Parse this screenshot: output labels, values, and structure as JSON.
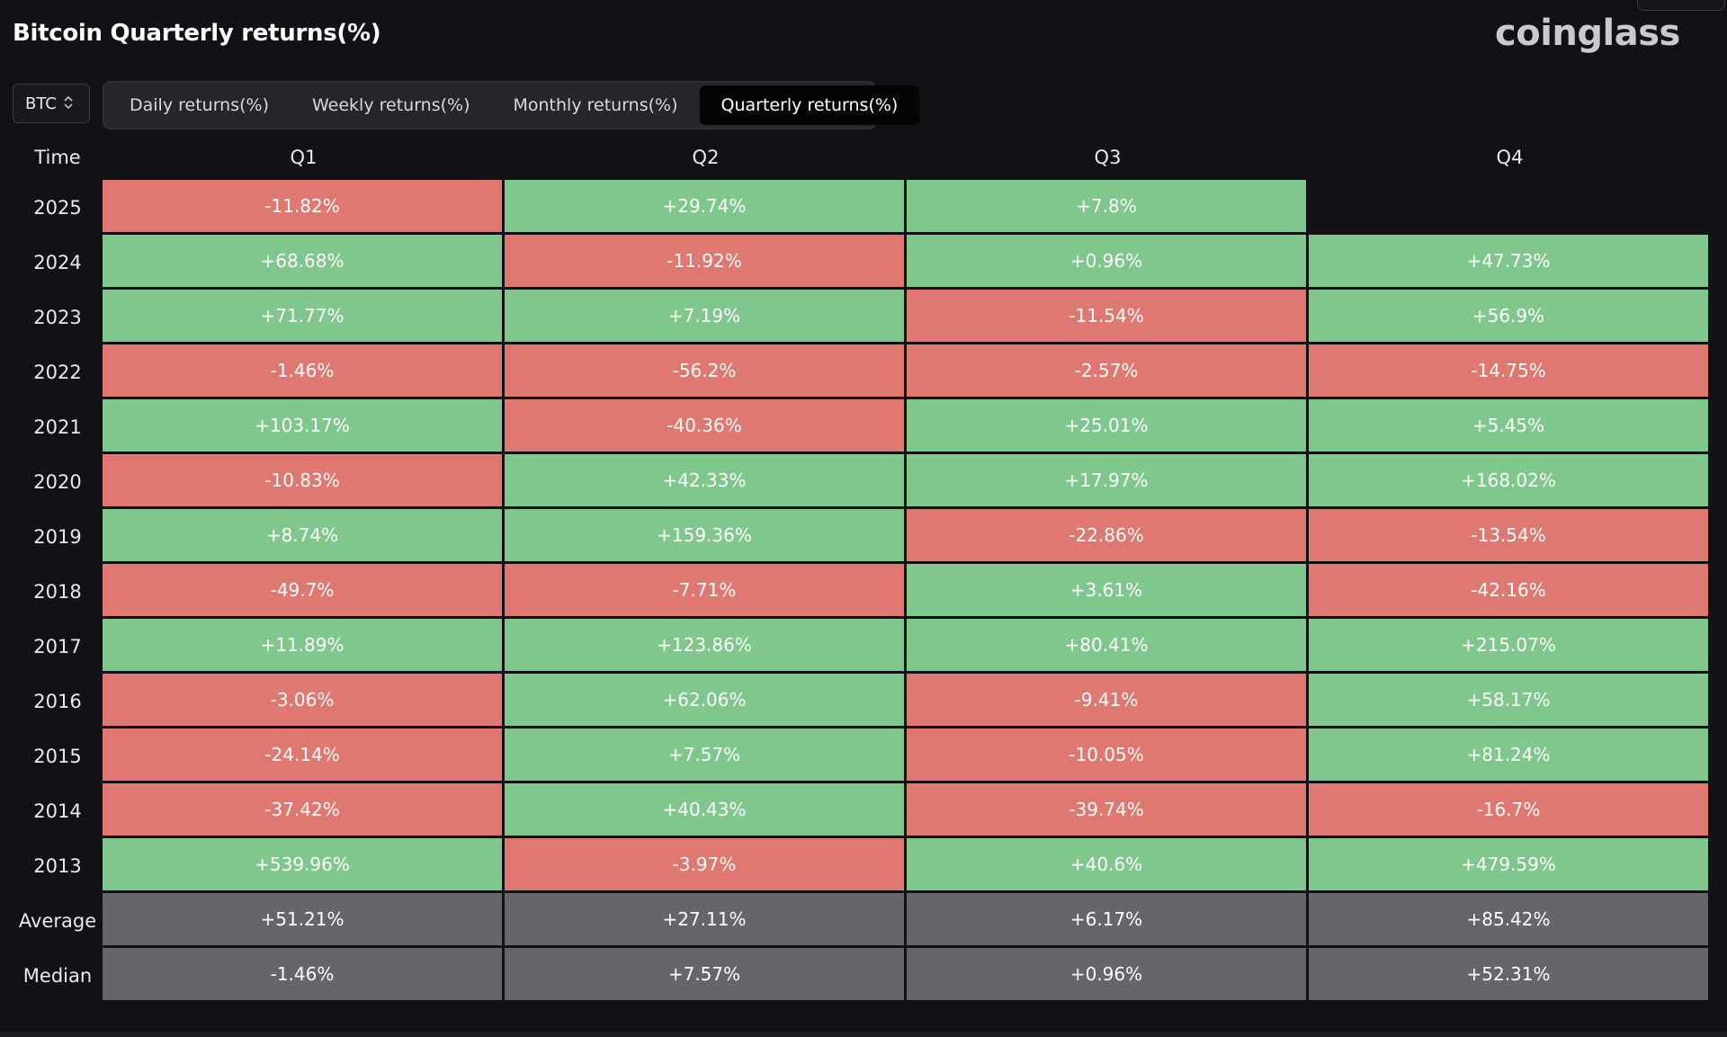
{
  "header": {
    "title": "Bitcoin Quarterly returns(%)",
    "brand": "coinglass"
  },
  "controls": {
    "asset": "BTC",
    "tabs": [
      {
        "label": "Daily returns(%)",
        "active": false
      },
      {
        "label": "Weekly returns(%)",
        "active": false
      },
      {
        "label": "Monthly returns(%)",
        "active": false
      },
      {
        "label": "Quarterly returns(%)",
        "active": true
      }
    ]
  },
  "colors": {
    "positive": "#80c78e",
    "negative": "#e07872",
    "summary": "#65666a",
    "background": "#111216"
  },
  "table": {
    "columns": [
      "Time",
      "Q1",
      "Q2",
      "Q3",
      "Q4"
    ],
    "rows": [
      {
        "label": "2025",
        "values": [
          "-11.82%",
          "+29.74%",
          "+7.8%",
          ""
        ]
      },
      {
        "label": "2024",
        "values": [
          "+68.68%",
          "-11.92%",
          "+0.96%",
          "+47.73%"
        ]
      },
      {
        "label": "2023",
        "values": [
          "+71.77%",
          "+7.19%",
          "-11.54%",
          "+56.9%"
        ]
      },
      {
        "label": "2022",
        "values": [
          "-1.46%",
          "-56.2%",
          "-2.57%",
          "-14.75%"
        ]
      },
      {
        "label": "2021",
        "values": [
          "+103.17%",
          "-40.36%",
          "+25.01%",
          "+5.45%"
        ]
      },
      {
        "label": "2020",
        "values": [
          "-10.83%",
          "+42.33%",
          "+17.97%",
          "+168.02%"
        ]
      },
      {
        "label": "2019",
        "values": [
          "+8.74%",
          "+159.36%",
          "-22.86%",
          "-13.54%"
        ]
      },
      {
        "label": "2018",
        "values": [
          "-49.7%",
          "-7.71%",
          "+3.61%",
          "-42.16%"
        ]
      },
      {
        "label": "2017",
        "values": [
          "+11.89%",
          "+123.86%",
          "+80.41%",
          "+215.07%"
        ]
      },
      {
        "label": "2016",
        "values": [
          "-3.06%",
          "+62.06%",
          "-9.41%",
          "+58.17%"
        ]
      },
      {
        "label": "2015",
        "values": [
          "-24.14%",
          "+7.57%",
          "-10.05%",
          "+81.24%"
        ]
      },
      {
        "label": "2014",
        "values": [
          "-37.42%",
          "+40.43%",
          "-39.74%",
          "-16.7%"
        ]
      },
      {
        "label": "2013",
        "values": [
          "+539.96%",
          "-3.97%",
          "+40.6%",
          "+479.59%"
        ]
      }
    ],
    "summary": [
      {
        "label": "Average",
        "values": [
          "+51.21%",
          "+27.11%",
          "+6.17%",
          "+85.42%"
        ]
      },
      {
        "label": "Median",
        "values": [
          "-1.46%",
          "+7.57%",
          "+0.96%",
          "+52.31%"
        ]
      }
    ]
  }
}
